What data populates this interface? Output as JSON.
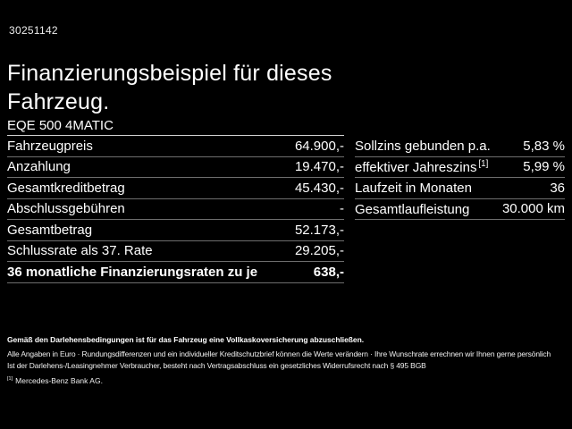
{
  "page": {
    "background_color": "#000000",
    "ref_number": "30251142",
    "title": "Finanzierungsbeispiel für dieses Fahrzeug.",
    "model": "EQE 500 4MATIC"
  },
  "finance_table": {
    "rows": [
      {
        "label": "Fahrzeugpreis",
        "value": "64.900,-",
        "bold": false
      },
      {
        "label": "Anzahlung",
        "value": "19.470,-",
        "bold": false
      },
      {
        "label": "Gesamtkreditbetrag",
        "value": "45.430,-",
        "bold": false
      },
      {
        "label": "Abschlussgebühren",
        "value": "-",
        "bold": false
      },
      {
        "label": "Gesamtbetrag",
        "value": "52.173,-",
        "bold": false
      },
      {
        "label": "Schlussrate als 37. Rate",
        "value": "29.205,-",
        "bold": false
      },
      {
        "label": "36 monatliche Finanzierungsraten zu je",
        "value": "638,-",
        "bold": true
      }
    ]
  },
  "conditions_table": {
    "rows": [
      {
        "label": "Sollzins gebunden p.a.",
        "sup": "",
        "value": "5,83 %"
      },
      {
        "label": "effektiver Jahreszins",
        "sup": "[1]",
        "value": "5,99 %"
      },
      {
        "label": "Laufzeit in Monaten",
        "sup": "",
        "value": "36"
      },
      {
        "label": "Gesamtlaufleistung",
        "sup": "",
        "value": "30.000 km"
      }
    ]
  },
  "legal": {
    "insurance_note": "Gemäß den Darlehensbedingungen ist für das Fahrzeug eine Vollkaskoversicherung abzuschließen.",
    "disclaimer_line1": "Alle Angaben in Euro · Rundungsdifferenzen und ein individueller Kreditschutzbrief können die Werte verändern · Ihre Wunschrate errechnen wir Ihnen gerne persönlich",
    "disclaimer_line2": "Ist der Darlehens-/Leasingnehmer Verbraucher, besteht nach Vertragsabschluss ein gesetzliches Widerrufsrecht nach § 495 BGB",
    "footnote_marker": "[1]",
    "footnote_text": "Mercedes-Benz Bank AG."
  },
  "colors": {
    "text": "#ffffff",
    "row_divider": "#6e6e6e",
    "header_underline": "#d4d4d4"
  }
}
